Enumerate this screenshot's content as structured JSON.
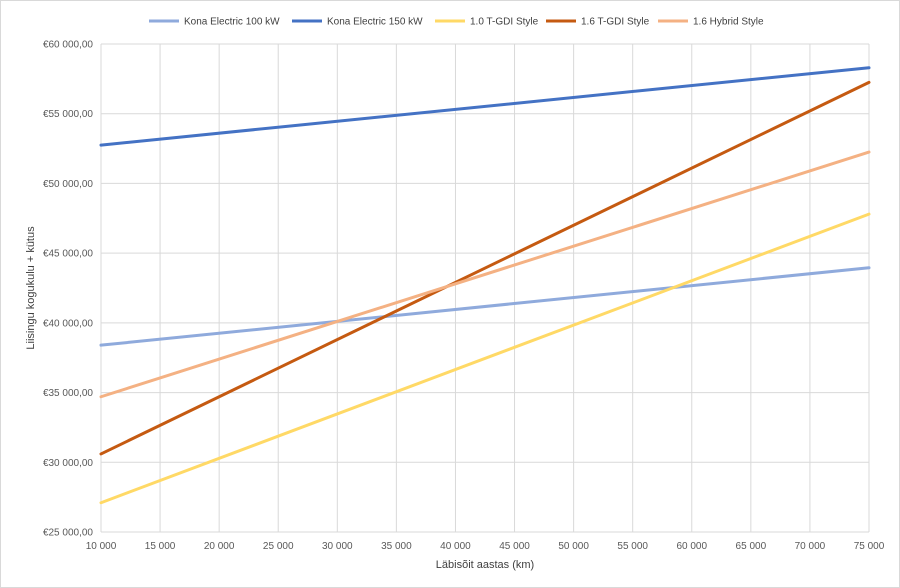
{
  "chart_data": {
    "type": "line",
    "x": [
      10000,
      75000
    ],
    "xticks": [
      "10 000",
      "15 000",
      "20 000",
      "25 000",
      "30 000",
      "35 000",
      "40 000",
      "45 000",
      "50 000",
      "55 000",
      "60 000",
      "65 000",
      "70 000",
      "75 000"
    ],
    "yticks": [
      "€25 000,00",
      "€30 000,00",
      "€35 000,00",
      "€40 000,00",
      "€45 000,00",
      "€50 000,00",
      "€55 000,00",
      "€60 000,00"
    ],
    "xlim": [
      10000,
      75000
    ],
    "ylim": [
      25000,
      60000
    ],
    "xlabel": "Läbisõit aastas (km)",
    "ylabel": "Liisingu kogukulu + kütus",
    "grid": "vertical and horizontal",
    "legend_position": "top",
    "series": [
      {
        "name": "Kona Electric 100 kW",
        "color": "#8faadc",
        "values": [
          38400,
          43950
        ]
      },
      {
        "name": "Kona Electric 150 kW",
        "color": "#4472c4",
        "values": [
          52750,
          58300
        ]
      },
      {
        "name": "1.0 T-GDI Style",
        "color": "#ffd966",
        "values": [
          27100,
          47800
        ]
      },
      {
        "name": "1.6 T-GDI Style",
        "color": "#c55a11",
        "values": [
          30600,
          57250
        ]
      },
      {
        "name": "1.6 Hybrid Style",
        "color": "#f4b183",
        "values": [
          34700,
          52250
        ]
      }
    ]
  }
}
